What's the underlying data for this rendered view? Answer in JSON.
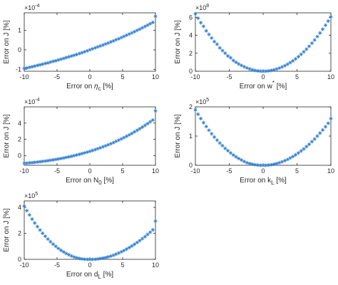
{
  "colors": {
    "marker": "#2f7fd0",
    "axis": "#262626",
    "background": "#ffffff"
  },
  "chart_data": [
    {
      "type": "scatter",
      "xlabel": "Error on η_c [%]",
      "xlabel_main": "Error on ",
      "xlabel_sym": "η",
      "xlabel_sub": "c",
      "xlabel_unit": " [%]",
      "ylabel": "Error on J [%]",
      "xlim": [
        -10,
        10
      ],
      "ylim": [
        -1.1,
        1.9
      ],
      "xticks": [
        -10,
        -5,
        0,
        5,
        10
      ],
      "yticks": [
        -1,
        0,
        1
      ],
      "scale_label": "×10",
      "scale_exp": "-4",
      "marker": "asterisk",
      "series": [
        {
          "x": [
            -10,
            -9.6,
            -9.2,
            -8.8,
            -8.4,
            -8,
            -7.6,
            -7.2,
            -6.8,
            -6.4,
            -6,
            -5.6,
            -5.2,
            -4.8,
            -4.4,
            -4,
            -3.6,
            -3.2,
            -2.8,
            -2.4,
            -2,
            -1.6,
            -1.2,
            -0.8,
            -0.4,
            0,
            0.4,
            0.8,
            1.2,
            1.6,
            2,
            2.4,
            2.8,
            3.2,
            3.6,
            4,
            4.4,
            4.8,
            5.2,
            5.6,
            6,
            6.4,
            6.8,
            7.2,
            7.6,
            8,
            8.4,
            8.8,
            9.2,
            9.6,
            10
          ],
          "y": [
            -0.95,
            -0.93,
            -0.9,
            -0.87,
            -0.84,
            -0.8,
            -0.77,
            -0.74,
            -0.7,
            -0.67,
            -0.63,
            -0.59,
            -0.56,
            -0.52,
            -0.48,
            -0.44,
            -0.4,
            -0.36,
            -0.32,
            -0.28,
            -0.24,
            -0.19,
            -0.15,
            -0.1,
            -0.05,
            0,
            0.05,
            0.1,
            0.15,
            0.2,
            0.25,
            0.3,
            0.35,
            0.41,
            0.46,
            0.52,
            0.57,
            0.63,
            0.69,
            0.75,
            0.81,
            0.87,
            0.93,
            1,
            1.06,
            1.13,
            1.2,
            1.27,
            1.34,
            1.41,
            1.72
          ]
        }
      ]
    },
    {
      "type": "scatter",
      "xlabel": "Error on w* [%]",
      "xlabel_main": "Error on w",
      "xlabel_sup": "*",
      "xlabel_unit": " [%]",
      "ylabel": "Error on J [%]",
      "xlim": [
        -10,
        10
      ],
      "ylim": [
        0,
        6.5
      ],
      "xticks": [
        -10,
        -5,
        0,
        5,
        10
      ],
      "yticks": [
        0,
        2,
        4,
        6
      ],
      "scale_label": "×10",
      "scale_exp": "8",
      "marker": "asterisk",
      "series": [
        {
          "x": [
            -10,
            -9.6,
            -9.2,
            -8.8,
            -8.4,
            -8,
            -7.6,
            -7.2,
            -6.8,
            -6.4,
            -6,
            -5.6,
            -5.2,
            -4.8,
            -4.4,
            -4,
            -3.6,
            -3.2,
            -2.8,
            -2.4,
            -2,
            -1.6,
            -1.2,
            -0.8,
            -0.4,
            0,
            0.4,
            0.8,
            1.2,
            1.6,
            2,
            2.4,
            2.8,
            3.2,
            3.6,
            4,
            4.4,
            4.8,
            5.2,
            5.6,
            6,
            6.4,
            6.8,
            7.2,
            7.6,
            8,
            8.4,
            8.8,
            9.2,
            9.6,
            10
          ],
          "y": [
            6.4,
            5.9,
            5.4,
            5,
            4.5,
            4.1,
            3.7,
            3.3,
            3,
            2.6,
            2.3,
            2,
            1.7,
            1.5,
            1.2,
            1,
            0.8,
            0.65,
            0.5,
            0.37,
            0.26,
            0.17,
            0.09,
            0.04,
            0.01,
            0,
            0.01,
            0.04,
            0.09,
            0.16,
            0.25,
            0.35,
            0.48,
            0.62,
            0.78,
            0.96,
            1.16,
            1.38,
            1.62,
            1.88,
            2.16,
            2.46,
            2.78,
            3.12,
            3.48,
            3.86,
            4.26,
            4.68,
            5.12,
            5.58,
            6.05
          ]
        }
      ]
    },
    {
      "type": "scatter",
      "xlabel": "Error on N_0 [%]",
      "xlabel_main": "Error on N",
      "xlabel_sub": "0",
      "xlabel_unit": " [%]",
      "ylabel": "Error on J [%]",
      "xlim": [
        -10,
        10
      ],
      "ylim": [
        -1.2,
        6
      ],
      "xticks": [
        -10,
        -5,
        0,
        5,
        10
      ],
      "yticks": [
        0,
        2,
        4
      ],
      "scale_label": "×10",
      "scale_exp": "-4",
      "marker": "asterisk",
      "series": [
        {
          "x": [
            -10,
            -9.6,
            -9.2,
            -8.8,
            -8.4,
            -8,
            -7.6,
            -7.2,
            -6.8,
            -6.4,
            -6,
            -5.6,
            -5.2,
            -4.8,
            -4.4,
            -4,
            -3.6,
            -3.2,
            -2.8,
            -2.4,
            -2,
            -1.6,
            -1.2,
            -0.8,
            -0.4,
            0,
            0.4,
            0.8,
            1.2,
            1.6,
            2,
            2.4,
            2.8,
            3.2,
            3.6,
            4,
            4.4,
            4.8,
            5.2,
            5.6,
            6,
            6.4,
            6.8,
            7.2,
            7.6,
            8,
            8.4,
            8.8,
            9.2,
            9.6,
            10
          ],
          "y": [
            -0.95,
            -0.93,
            -0.9,
            -0.87,
            -0.84,
            -0.8,
            -0.76,
            -0.72,
            -0.68,
            -0.63,
            -0.58,
            -0.53,
            -0.48,
            -0.42,
            -0.36,
            -0.3,
            -0.23,
            -0.16,
            -0.09,
            -0.01,
            0.07,
            0.15,
            0.24,
            0.33,
            0.42,
            0.52,
            0.62,
            0.73,
            0.84,
            0.96,
            1.08,
            1.2,
            1.33,
            1.46,
            1.6,
            1.75,
            1.9,
            2.05,
            2.21,
            2.38,
            2.55,
            2.73,
            2.92,
            3.11,
            3.3,
            3.51,
            3.72,
            3.93,
            4.16,
            4.38,
            5.5
          ]
        }
      ]
    },
    {
      "type": "scatter",
      "xlabel": "Error on k_L [%]",
      "xlabel_main": "Error on k",
      "xlabel_sub": "L",
      "xlabel_unit": " [%]",
      "ylabel": "Error on J [%]",
      "xlim": [
        -10,
        10
      ],
      "ylim": [
        0,
        2
      ],
      "xticks": [
        -10,
        -5,
        0,
        5,
        10
      ],
      "yticks": [
        0,
        1,
        2
      ],
      "scale_label": "×10",
      "scale_exp": "5",
      "marker": "asterisk",
      "series": [
        {
          "x": [
            -10,
            -9.6,
            -9.2,
            -8.8,
            -8.4,
            -8,
            -7.6,
            -7.2,
            -6.8,
            -6.4,
            -6,
            -5.6,
            -5.2,
            -4.8,
            -4.4,
            -4,
            -3.6,
            -3.2,
            -2.8,
            -2.4,
            -2,
            -1.6,
            -1.2,
            -0.8,
            -0.4,
            0,
            0.4,
            0.8,
            1.2,
            1.6,
            2,
            2.4,
            2.8,
            3.2,
            3.6,
            4,
            4.4,
            4.8,
            5.2,
            5.6,
            6,
            6.4,
            6.8,
            7.2,
            7.6,
            8,
            8.4,
            8.8,
            9.2,
            9.6,
            10
          ],
          "y": [
            1.9,
            1.75,
            1.6,
            1.46,
            1.33,
            1.2,
            1.08,
            0.97,
            0.86,
            0.76,
            0.67,
            0.58,
            0.5,
            0.42,
            0.35,
            0.29,
            0.23,
            0.18,
            0.13,
            0.09,
            0.06,
            0.04,
            0.02,
            0.01,
            0,
            0,
            0,
            0.01,
            0.02,
            0.04,
            0.06,
            0.09,
            0.12,
            0.16,
            0.2,
            0.25,
            0.3,
            0.36,
            0.42,
            0.49,
            0.56,
            0.64,
            0.72,
            0.81,
            0.9,
            1,
            1.1,
            1.21,
            1.32,
            1.44,
            1.6
          ]
        }
      ]
    },
    {
      "type": "scatter",
      "xlabel": "Error on d_L [%]",
      "xlabel_main": "Error on d",
      "xlabel_sub": "L",
      "xlabel_unit": " [%]",
      "ylabel": "Error on J [%]",
      "xlim": [
        -10,
        10
      ],
      "ylim": [
        0,
        4.5
      ],
      "xticks": [
        -10,
        -5,
        0,
        5,
        10
      ],
      "yticks": [
        0,
        2,
        4
      ],
      "scale_label": "×10",
      "scale_exp": "5",
      "marker": "asterisk",
      "series": [
        {
          "x": [
            -10,
            -9.6,
            -9.2,
            -8.8,
            -8.4,
            -8,
            -7.6,
            -7.2,
            -6.8,
            -6.4,
            -6,
            -5.6,
            -5.2,
            -4.8,
            -4.4,
            -4,
            -3.6,
            -3.2,
            -2.8,
            -2.4,
            -2,
            -1.6,
            -1.2,
            -0.8,
            -0.4,
            0,
            0.4,
            0.8,
            1.2,
            1.6,
            2,
            2.4,
            2.8,
            3.2,
            3.6,
            4,
            4.4,
            4.8,
            5.2,
            5.6,
            6,
            6.4,
            6.8,
            7.2,
            7.6,
            8,
            8.4,
            8.8,
            9.2,
            9.6,
            10
          ],
          "y": [
            4.1,
            3.75,
            3.42,
            3.1,
            2.8,
            2.52,
            2.26,
            2.01,
            1.78,
            1.56,
            1.36,
            1.17,
            1,
            0.84,
            0.7,
            0.57,
            0.45,
            0.35,
            0.26,
            0.18,
            0.12,
            0.07,
            0.03,
            0.01,
            0,
            0,
            0,
            0.01,
            0.03,
            0.06,
            0.1,
            0.14,
            0.19,
            0.25,
            0.32,
            0.4,
            0.49,
            0.58,
            0.68,
            0.79,
            0.91,
            1.03,
            1.16,
            1.3,
            1.44,
            1.59,
            1.75,
            1.92,
            2.09,
            2.27,
            2.95
          ]
        }
      ]
    }
  ]
}
